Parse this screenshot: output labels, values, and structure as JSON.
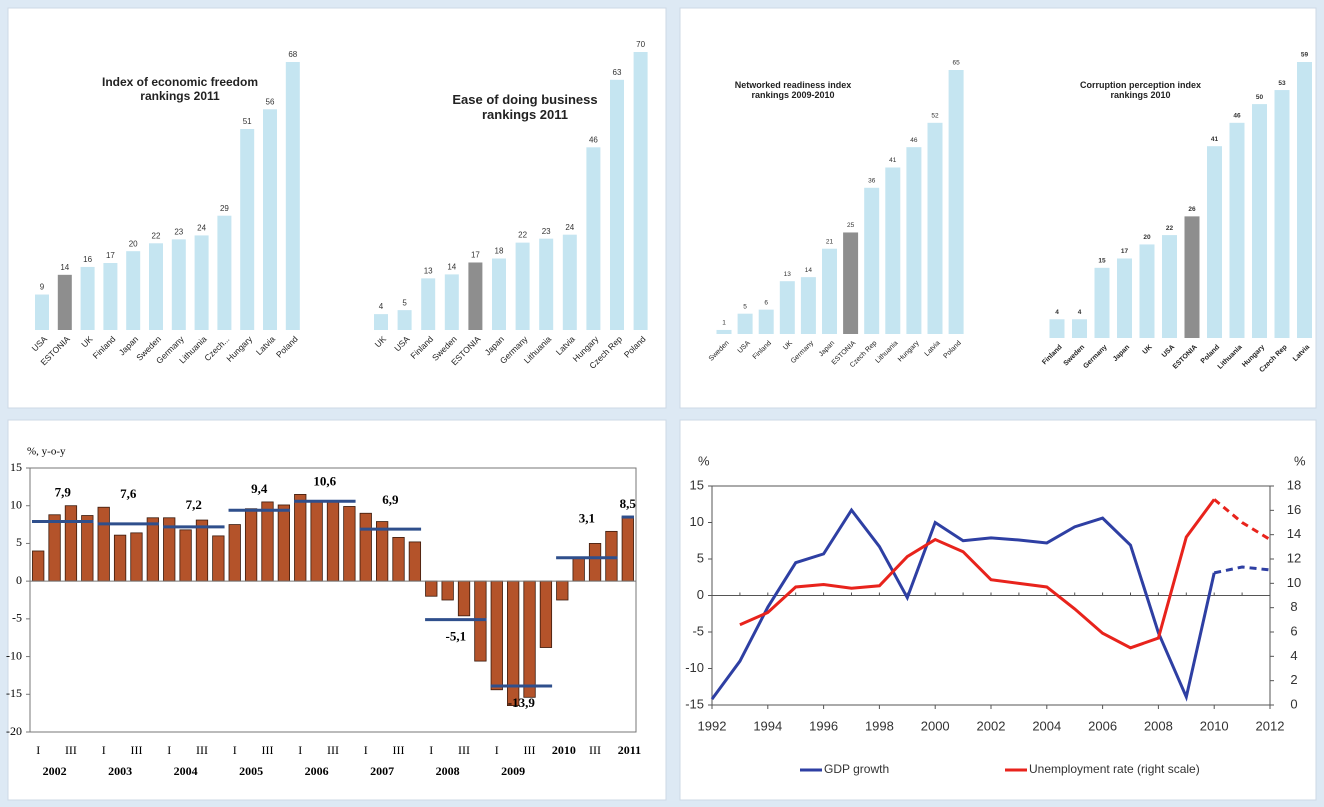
{
  "chart_data": [
    {
      "type": "bar",
      "title": "Index of economic freedom rankings 2011",
      "categories": [
        "USA",
        "ESTONIA",
        "UK",
        "Finland",
        "Japan",
        "Sweden",
        "Germany",
        "Lithuania",
        "Czech...",
        "Hungary",
        "Latvia",
        "Poland"
      ],
      "values": [
        9,
        14,
        16,
        17,
        20,
        22,
        23,
        24,
        29,
        51,
        56,
        68
      ],
      "colors": [
        "#c5e5f1",
        "#8e8e8e",
        "#c5e5f1",
        "#c5e5f1",
        "#c5e5f1",
        "#c5e5f1",
        "#c5e5f1",
        "#c5e5f1",
        "#c5e5f1",
        "#c5e5f1",
        "#c5e5f1",
        "#c5e5f1"
      ]
    },
    {
      "type": "bar",
      "title": "Ease of doing business rankings 2011",
      "categories": [
        "UK",
        "USA",
        "Finland",
        "Sweden",
        "ESTONIA",
        "Japan",
        "Germany",
        "Lithuania",
        "Latvia",
        "Hungary",
        "Czech Rep",
        "Poland"
      ],
      "values": [
        4,
        5,
        13,
        14,
        17,
        18,
        22,
        23,
        24,
        46,
        63,
        70
      ],
      "colors": [
        "#c5e5f1",
        "#c5e5f1",
        "#c5e5f1",
        "#c5e5f1",
        "#8e8e8e",
        "#c5e5f1",
        "#c5e5f1",
        "#c5e5f1",
        "#c5e5f1",
        "#c5e5f1",
        "#c5e5f1",
        "#c5e5f1"
      ]
    },
    {
      "type": "bar",
      "title": "Networked readiness index rankings 2009-2010",
      "categories": [
        "Sweden",
        "USA",
        "Finland",
        "UK",
        "Germany",
        "Japan",
        "ESTONIA",
        "Czech Rep",
        "Lithuania",
        "Hungary",
        "Latvia",
        "Poland"
      ],
      "values": [
        1,
        5,
        6,
        13,
        14,
        21,
        25,
        36,
        41,
        46,
        52,
        65
      ],
      "colors": [
        "#c5e5f1",
        "#c5e5f1",
        "#c5e5f1",
        "#c5e5f1",
        "#c5e5f1",
        "#c5e5f1",
        "#8e8e8e",
        "#c5e5f1",
        "#c5e5f1",
        "#c5e5f1",
        "#c5e5f1",
        "#c5e5f1"
      ]
    },
    {
      "type": "bar",
      "title": "Corruption perception index rankings 2010",
      "categories": [
        "Finland",
        "Sweden",
        "Germany",
        "Japan",
        "UK",
        "USA",
        "ESTONIA",
        "Poland",
        "Lithuania",
        "Hungary",
        "Czech Rep",
        "Latvia"
      ],
      "values": [
        4,
        4,
        15,
        17,
        20,
        22,
        26,
        41,
        46,
        50,
        53,
        59
      ],
      "colors": [
        "#c5e5f1",
        "#c5e5f1",
        "#c5e5f1",
        "#c5e5f1",
        "#c5e5f1",
        "#c5e5f1",
        "#8e8e8e",
        "#c5e5f1",
        "#c5e5f1",
        "#c5e5f1",
        "#c5e5f1",
        "#c5e5f1"
      ]
    },
    {
      "type": "bar",
      "y_label": "%, y-o-y",
      "categories": [
        "I",
        null,
        "III",
        null,
        "I",
        null,
        "III",
        null,
        "I",
        null,
        "III",
        null,
        "I",
        null,
        "III",
        null,
        "I",
        null,
        "III",
        null,
        "I",
        null,
        "III",
        null,
        "I",
        null,
        "III",
        null,
        "I",
        null,
        "III",
        null,
        null,
        null,
        "III",
        null,
        null
      ],
      "values": [
        4.0,
        8.8,
        10.0,
        8.7,
        9.8,
        6.1,
        6.4,
        8.4,
        8.4,
        6.8,
        8.1,
        6.0,
        7.5,
        9.6,
        10.5,
        10.1,
        11.5,
        10.5,
        10.7,
        9.9,
        9.0,
        7.9,
        5.8,
        5.2,
        -2.0,
        -2.5,
        -4.6,
        -10.6,
        -14.4,
        -16.5,
        -15.4,
        -8.8,
        -2.5,
        3.1,
        5.0,
        6.6,
        8.5
      ],
      "color": "#b4532a",
      "years": [
        "2002",
        "2003",
        "2004",
        "2005",
        "2006",
        "2007",
        "2008",
        "2009",
        "2010",
        "2011"
      ],
      "annual": {
        "values": [
          7.9,
          7.6,
          7.2,
          9.4,
          10.6,
          6.9,
          -5.1,
          -13.9,
          3.1,
          8.5
        ],
        "value_labels": [
          "7,9",
          "7,6",
          "7,2",
          "9,4",
          "10,6",
          "6,9",
          "-5,1",
          "-13,9",
          "3,1",
          "8,5"
        ],
        "color": "#2f4f8c"
      },
      "ylim": [
        -20,
        15
      ],
      "yticks": [
        -20,
        -15,
        -10,
        -5,
        0,
        5,
        10,
        15
      ]
    },
    {
      "type": "line",
      "y_label": "%",
      "y2_label": "%",
      "x": [
        1992,
        1993,
        1994,
        1995,
        1996,
        1997,
        1998,
        1999,
        2000,
        2001,
        2002,
        2003,
        2004,
        2005,
        2006,
        2007,
        2008,
        2009,
        2010,
        2011,
        2012
      ],
      "projection_start": 2010,
      "series": [
        {
          "name": "GDP growth",
          "color": "#2e3fa3",
          "values": [
            -14.2,
            -9.0,
            -1.6,
            4.5,
            5.7,
            11.7,
            6.7,
            -0.3,
            10.0,
            7.5,
            7.9,
            7.6,
            7.2,
            9.4,
            10.6,
            6.9,
            -5.1,
            -13.9,
            3.1,
            3.9,
            3.5
          ]
        },
        {
          "name": "Unemployment rate (right scale)",
          "color": "#e8231c",
          "axis": "y2",
          "values": [
            null,
            6.6,
            7.6,
            9.7,
            9.9,
            9.6,
            9.8,
            12.2,
            13.6,
            12.6,
            10.3,
            10.0,
            9.7,
            7.9,
            5.9,
            4.7,
            5.5,
            13.8,
            16.9,
            15.0,
            13.6
          ]
        }
      ],
      "xlim": [
        1992,
        2012
      ],
      "xticks": [
        1992,
        1994,
        1996,
        1998,
        2000,
        2002,
        2004,
        2006,
        2008,
        2010,
        2012
      ],
      "ylim": [
        -15,
        15
      ],
      "yticks": [
        -15,
        -10,
        -5,
        0,
        5,
        10,
        15
      ],
      "y2lim": [
        0,
        18
      ],
      "y2ticks": [
        0,
        2,
        4,
        6,
        8,
        10,
        12,
        14,
        16,
        18
      ],
      "legend": "bottom"
    }
  ]
}
